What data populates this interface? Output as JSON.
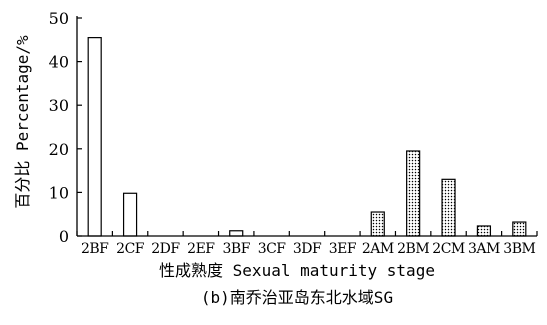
{
  "chart_data": {
    "type": "bar",
    "categories": [
      "2BF",
      "2CF",
      "2DF",
      "2EF",
      "3BF",
      "3CF",
      "3DF",
      "3EF",
      "2AM",
      "2BM",
      "2CM",
      "3AM",
      "3BM"
    ],
    "values": [
      45.5,
      9.8,
      0,
      0,
      1.2,
      0,
      0,
      0,
      5.5,
      19.5,
      13,
      2.3,
      3.2
    ],
    "bar_style": [
      "open",
      "open",
      "open",
      "open",
      "open",
      "open",
      "open",
      "open",
      "dotted",
      "dotted",
      "dotted",
      "dotted",
      "dotted"
    ],
    "xlabel": "性成熟度 Sexual maturity stage",
    "ylabel": "百分比 Percentage/%",
    "ylim": [
      0,
      50
    ],
    "yticks": [
      0,
      10,
      20,
      30,
      40,
      50
    ],
    "caption": "(b)南乔治亚岛东北水域SG",
    "grid": false
  }
}
